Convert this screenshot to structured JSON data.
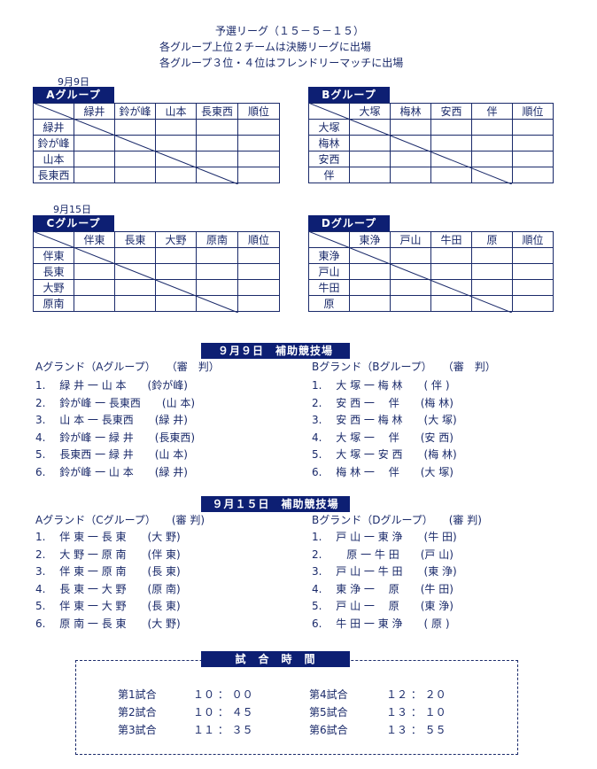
{
  "header": {
    "line1": "予選リーグ（１５－５－１５）",
    "line2": "各グループ上位２チームは決勝リーグに出場",
    "line3": "各グループ３位・４位はフレンドリーマッチに出場"
  },
  "dates": {
    "d1": "9月9日",
    "d2": "9月15日"
  },
  "groups": [
    {
      "title": "Aグループ",
      "teams": [
        "緑井",
        "鈴が峰",
        "山本",
        "長東西"
      ],
      "rank": "順位"
    },
    {
      "title": "Bグループ",
      "teams": [
        "大塚",
        "梅林",
        "安西",
        "伴"
      ],
      "rank": "順位"
    },
    {
      "title": "Cグループ",
      "teams": [
        "伴東",
        "長東",
        "大野",
        "原南"
      ],
      "rank": "順位"
    },
    {
      "title": "Dグループ",
      "teams": [
        "東浄",
        "戸山",
        "牛田",
        "原"
      ],
      "rank": "順位"
    }
  ],
  "day1": {
    "banner": "９月９日　補助競技場",
    "left_head": "Aグランド（Aグループ）　　（審　判）",
    "right_head": "Bグランド（Bグループ）　　（審　判）",
    "left": [
      "1.　 緑 井 一 山 本　　(鈴が峰)",
      "2.　 鈴が峰 一 長東西　　(山 本)",
      "3.　 山 本 一 長東西　　(緑 井)",
      "4.　 鈴が峰 一 緑 井　　(長東西)",
      "5.　 長東西 一 緑 井　　(山 本)",
      "6.　 鈴が峰 一 山 本　　(緑 井)"
    ],
    "right": [
      "1.　 大 塚 一 梅 林　　( 伴 )",
      "2.　 安 西 一　 伴　　(梅 林)",
      "3.　 安 西 一 梅 林　　(大 塚)",
      "4.　 大 塚 一　 伴　　(安 西)",
      "5.　 大 塚 一 安 西　　(梅 林)",
      "6.　 梅 林 一　 伴　　(大 塚)"
    ]
  },
  "day2": {
    "banner": "９月１５日　補助競技場",
    "left_head": "Aグランド（Cグループ）　　(審 判)",
    "right_head": "Bグランド（Dグループ）　　(審 判)",
    "left": [
      "1.　 伴 東 一 長 東　　(大 野)",
      "2.　 大 野 一 原 南　　(伴 東)",
      "3.　 伴 東 一 原 南　　(長 東)",
      "4.　 長 東 一 大 野　　(原 南)",
      "5.　 伴 東 一 大 野　　(長 東)",
      "6.　 原 南 一 長 東　　(大 野)"
    ],
    "right": [
      "1.　 戸 山 一 東 浄　　(牛 田)",
      "2.　　 原 一 牛 田　　(戸 山)",
      "3.　 戸 山 一 牛 田　　(東 浄)",
      "4.　 東 浄 一　 原　　(牛 田)",
      "5.　 戸 山 一　 原　　(東 浄)",
      "6.　 牛 田 一 東 浄　　( 原 )"
    ]
  },
  "times": {
    "banner": "試　合　時　間",
    "rows": [
      {
        "label": "第1試合",
        "time": "１０ ： ００"
      },
      {
        "label": "第2試合",
        "time": "１０ ： ４５"
      },
      {
        "label": "第3試合",
        "time": "１１ ： ３５"
      },
      {
        "label": "第4試合",
        "time": "１２ ： ２０"
      },
      {
        "label": "第5試合",
        "time": "１３ ： １０"
      },
      {
        "label": "第6試合",
        "time": "１３ ： ５５"
      }
    ]
  }
}
